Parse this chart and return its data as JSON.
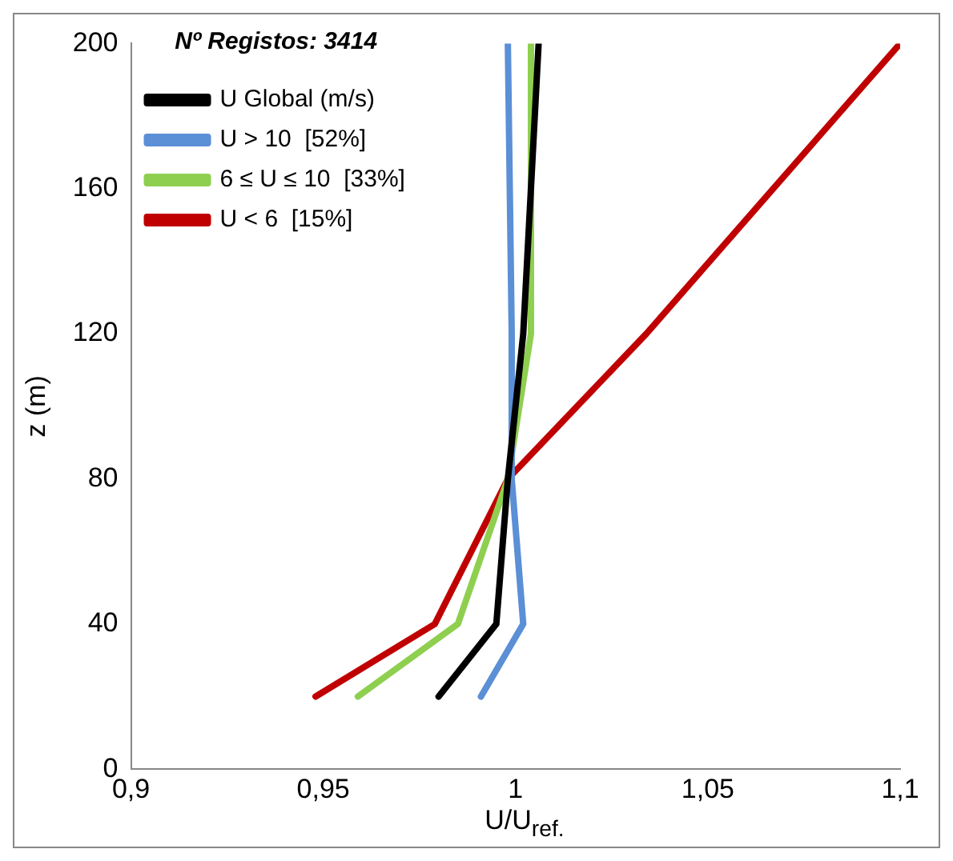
{
  "chart_data": {
    "type": "line",
    "xlabel": "U/U$_{ref.}$",
    "ylabel": "z (m)",
    "legend_title": "Nº Registos: 3414",
    "legend": "top left",
    "grid": false,
    "marker": "none",
    "line_style": "solid",
    "xlim": [
      0.9,
      1.1
    ],
    "xticks": [
      {
        "value": 0.9,
        "label": "0,9"
      },
      {
        "value": 0.95,
        "label": "0,95"
      },
      {
        "value": 1,
        "label": "1"
      },
      {
        "value": 1.05,
        "label": "1,05"
      },
      {
        "value": 1.1,
        "label": "1,1"
      }
    ],
    "ylim": [
      0,
      200
    ],
    "yticks": [
      0,
      40,
      80,
      120,
      160,
      200
    ],
    "series": [
      {
        "name": "U Global (m/s)",
        "color": "#000000",
        "x": [
          0.98,
          0.995,
          0.998,
          1.002,
          1.006
        ],
        "values": [
          20,
          40,
          80,
          120,
          200
        ]
      },
      {
        "name": "U > 10  [52%]",
        "color": "#5b8fd6",
        "x": [
          0.991,
          1.002,
          0.999,
          0.999,
          0.998
        ],
        "values": [
          20,
          40,
          80,
          120,
          200
        ]
      },
      {
        "name": "6 ≤ U ≤ 10  [33%]",
        "color": "#8fcf50",
        "x": [
          0.959,
          0.985,
          0.998,
          1.004,
          1.004
        ],
        "values": [
          20,
          40,
          80,
          120,
          200
        ]
      },
      {
        "name": "U < 6  [15%]",
        "color": "#c00000",
        "x": [
          0.948,
          0.979,
          0.998,
          1.034,
          1.1
        ],
        "values": [
          20,
          40,
          80,
          120,
          200
        ]
      }
    ]
  }
}
